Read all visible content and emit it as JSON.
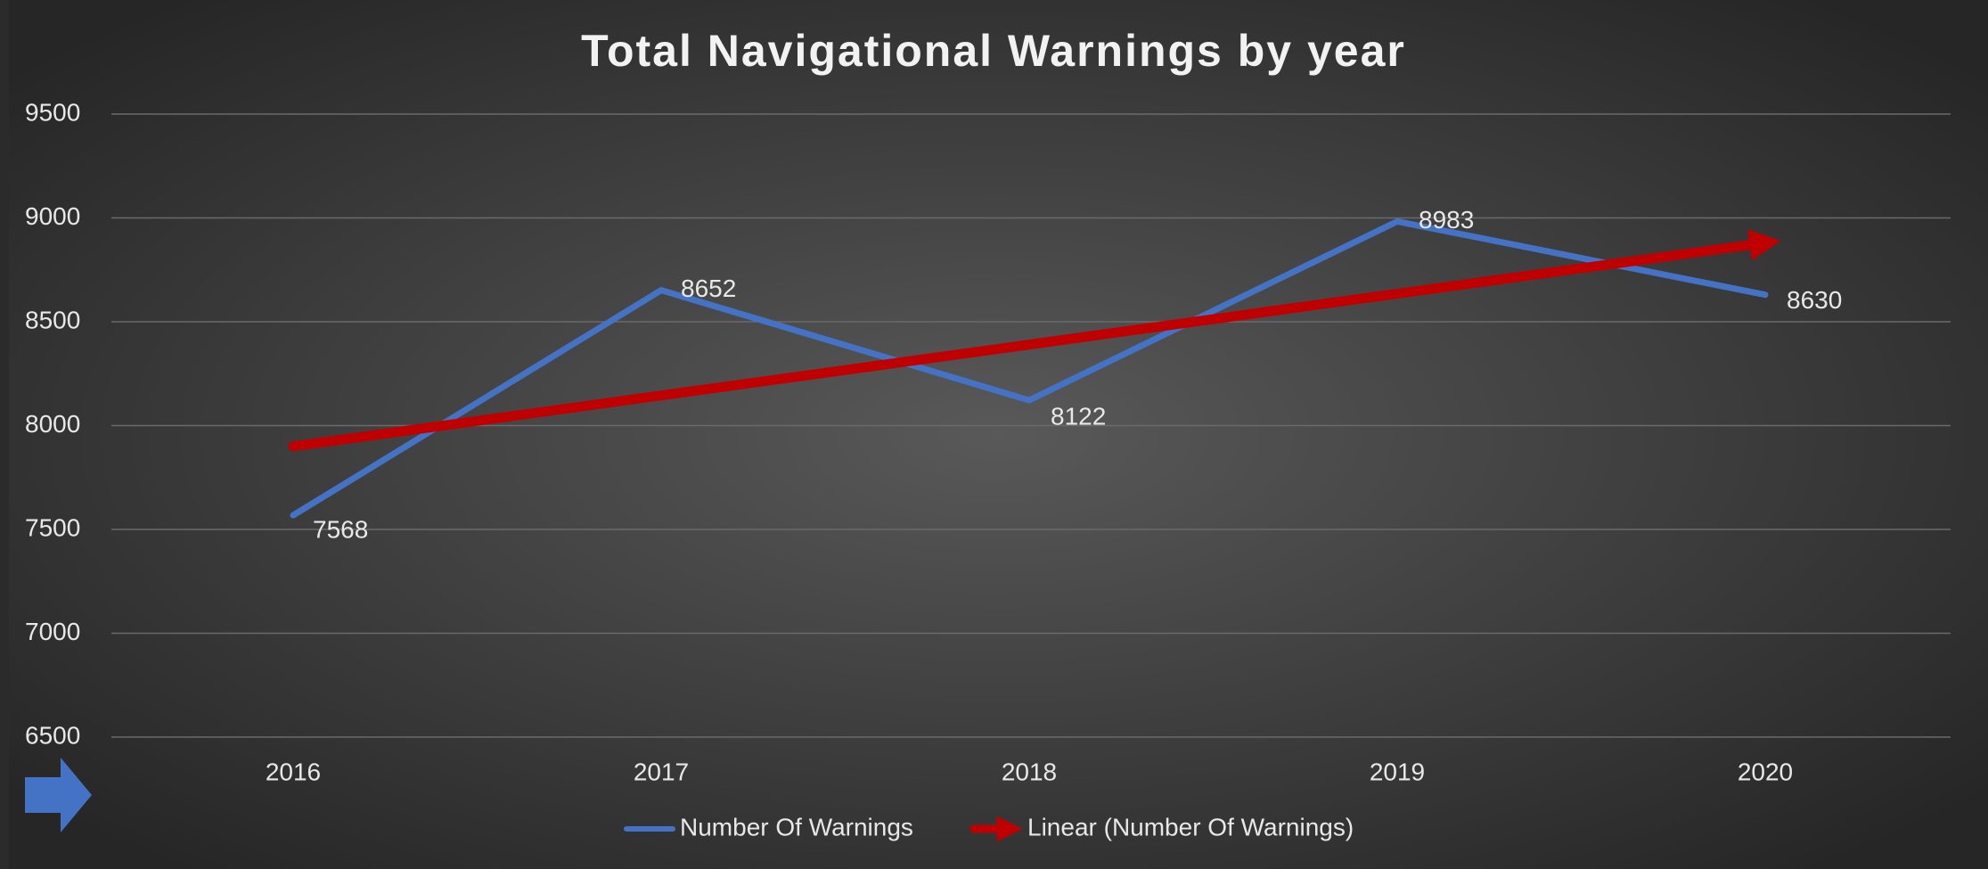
{
  "chart_data": {
    "type": "line",
    "title": "Total Navigational Warnings by year",
    "categories": [
      "2016",
      "2017",
      "2018",
      "2019",
      "2020"
    ],
    "series": [
      {
        "name": "Number Of Warnings",
        "color": "#4472c4",
        "values": [
          7568,
          8652,
          8122,
          8983,
          8630
        ]
      },
      {
        "name": "Linear (Number Of Warnings)",
        "color": "#c00000",
        "values": [
          7900,
          8145,
          8390,
          8635,
          8880
        ]
      }
    ],
    "data_labels_series": 0,
    "ylim": [
      6500,
      9500
    ],
    "yticks": [
      6500,
      7000,
      7500,
      8000,
      8500,
      9000,
      9500
    ],
    "grid": true,
    "legend": "bottom"
  }
}
